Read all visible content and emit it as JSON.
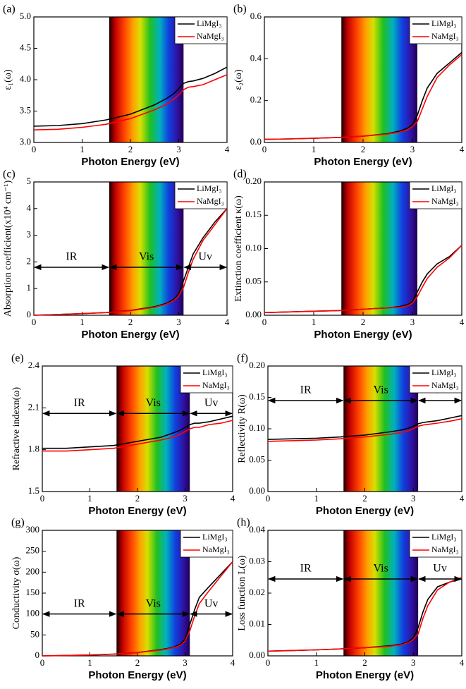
{
  "chart_data": [
    {
      "type": "line",
      "panel": "(a)",
      "xlabel": "Photon Energy (eV)",
      "ylabel": "ε₁(ω)",
      "x": [
        0,
        0.5,
        1,
        1.5,
        2,
        2.5,
        2.75,
        2.9,
        3,
        3.1,
        3.2,
        3.3,
        3.5,
        3.75,
        4
      ],
      "xlim": [
        0,
        4
      ],
      "xticks": [
        0,
        1,
        2,
        3,
        4
      ],
      "ylim": [
        3,
        5
      ],
      "yticks": [
        {
          "value": 3,
          "label": "3.0"
        },
        {
          "value": 3.5,
          "label": "3.5"
        },
        {
          "value": 4,
          "label": "4.0"
        },
        {
          "value": 4.5,
          "label": "4.5"
        },
        {
          "value": 5,
          "label": "5.0"
        }
      ],
      "legend": "upper right",
      "spectrum_band": [
        1.56,
        3.1
      ],
      "series": [
        {
          "name": "LiMgI₃",
          "color": "#000000",
          "values": [
            3.26,
            3.27,
            3.3,
            3.36,
            3.45,
            3.6,
            3.7,
            3.78,
            3.86,
            3.94,
            3.97,
            3.98,
            4.02,
            4.1,
            4.2
          ]
        },
        {
          "name": "NaMgI₃",
          "color": "#ff0000",
          "values": [
            3.2,
            3.21,
            3.24,
            3.29,
            3.38,
            3.52,
            3.61,
            3.69,
            3.76,
            3.84,
            3.88,
            3.89,
            3.92,
            4.0,
            4.08
          ]
        }
      ]
    },
    {
      "type": "line",
      "panel": "(b)",
      "xlabel": "Photon Energy (eV)",
      "ylabel": "ε₂(ω)",
      "x": [
        0,
        0.5,
        1,
        1.5,
        2,
        2.5,
        2.75,
        2.9,
        3,
        3.1,
        3.2,
        3.3,
        3.5,
        3.75,
        4
      ],
      "xlim": [
        0,
        4
      ],
      "xticks": [
        0,
        1,
        2,
        3,
        4
      ],
      "ylim": [
        0,
        0.6
      ],
      "yticks": [
        {
          "value": 0,
          "label": "0.0"
        },
        0.2,
        0.4,
        0.6
      ],
      "legend": "upper right",
      "spectrum_band": [
        1.56,
        3.1
      ],
      "series": [
        {
          "name": "LiMgI₃",
          "color": "#000000",
          "values": [
            0.015,
            0.017,
            0.02,
            0.024,
            0.03,
            0.042,
            0.055,
            0.068,
            0.085,
            0.13,
            0.2,
            0.26,
            0.33,
            0.38,
            0.43
          ]
        },
        {
          "name": "NaMgI₃",
          "color": "#ff0000",
          "values": [
            0.015,
            0.017,
            0.02,
            0.024,
            0.03,
            0.04,
            0.05,
            0.06,
            0.075,
            0.1,
            0.16,
            0.22,
            0.31,
            0.37,
            0.42
          ]
        }
      ]
    },
    {
      "type": "line",
      "panel": "(c)",
      "xlabel": "Photon Energy (eV)",
      "ylabel": "Absorption coefficient(x10⁴ cm⁻¹)",
      "x": [
        0,
        0.5,
        1,
        1.5,
        2,
        2.5,
        2.75,
        2.9,
        3,
        3.1,
        3.2,
        3.3,
        3.5,
        3.75,
        4
      ],
      "xlim": [
        0,
        4
      ],
      "xticks": [
        0,
        1,
        2,
        3,
        4
      ],
      "ylim": [
        0,
        5
      ],
      "yticks": [
        0,
        1,
        2,
        3,
        4,
        5
      ],
      "legend": "upper right",
      "spectrum_band": [
        1.56,
        3.1
      ],
      "annotation_y": 1.8,
      "regions": [
        {
          "label": "IR",
          "range": [
            0,
            1.56
          ]
        },
        {
          "label": "Vis",
          "range": [
            1.56,
            3.1
          ]
        },
        {
          "label": "Uv",
          "range": [
            3.1,
            4
          ]
        }
      ],
      "series": [
        {
          "name": "LiMgI₃",
          "color": "#000000",
          "values": [
            0,
            0.03,
            0.06,
            0.1,
            0.18,
            0.32,
            0.45,
            0.6,
            0.8,
            1.3,
            1.8,
            2.3,
            2.9,
            3.5,
            4.0
          ]
        },
        {
          "name": "NaMgI₃",
          "color": "#ff0000",
          "values": [
            0,
            0.03,
            0.06,
            0.1,
            0.17,
            0.3,
            0.42,
            0.55,
            0.72,
            1.05,
            1.6,
            2.1,
            2.8,
            3.4,
            4.0
          ]
        }
      ]
    },
    {
      "type": "line",
      "panel": "(d)",
      "xlabel": "Photon Energy (eV)",
      "ylabel": "Extinction coefficient κ(ω)",
      "x": [
        0,
        0.5,
        1,
        1.5,
        2,
        2.5,
        2.75,
        2.9,
        3,
        3.1,
        3.2,
        3.3,
        3.5,
        3.75,
        4
      ],
      "xlim": [
        0,
        4
      ],
      "xticks": [
        0,
        1,
        2,
        3,
        4
      ],
      "ylim": [
        0,
        0.2
      ],
      "yticks": [
        {
          "value": 0,
          "label": "0.00"
        },
        0.05,
        {
          "value": 0.1,
          "label": "0.10"
        },
        0.15,
        {
          "value": 0.2,
          "label": "0.20"
        }
      ],
      "legend": "upper right",
      "spectrum_band": [
        1.56,
        3.1
      ],
      "series": [
        {
          "name": "LiMgI₃",
          "color": "#000000",
          "values": [
            0.004,
            0.005,
            0.006,
            0.007,
            0.009,
            0.011,
            0.013,
            0.016,
            0.02,
            0.035,
            0.05,
            0.062,
            0.077,
            0.088,
            0.105
          ]
        },
        {
          "name": "NaMgI₃",
          "color": "#ff0000",
          "values": [
            0.004,
            0.005,
            0.006,
            0.007,
            0.009,
            0.011,
            0.012,
            0.014,
            0.018,
            0.028,
            0.042,
            0.055,
            0.072,
            0.086,
            0.105
          ]
        }
      ]
    },
    {
      "type": "line",
      "panel": "(e)",
      "xlabel": "Photon Energy (eV)",
      "ylabel": "Refractive indexn(ω)",
      "x": [
        0,
        0.5,
        1,
        1.5,
        2,
        2.5,
        2.75,
        2.9,
        3,
        3.1,
        3.2,
        3.3,
        3.5,
        3.75,
        4
      ],
      "xlim": [
        0,
        4
      ],
      "xticks": [
        0,
        1,
        2,
        3,
        4
      ],
      "ylim": [
        1.5,
        2.4
      ],
      "yticks": [
        1.5,
        1.8,
        2.1,
        2.4
      ],
      "legend": "upper right",
      "spectrum_band": [
        1.56,
        3.1
      ],
      "annotation_y": 2.06,
      "regions": [
        {
          "label": "IR",
          "range": [
            0,
            1.56
          ]
        },
        {
          "label": "Vis",
          "range": [
            1.56,
            3.1
          ]
        },
        {
          "label": "Uv",
          "range": [
            3.1,
            4
          ]
        }
      ],
      "series": [
        {
          "name": "LiMgI₃",
          "color": "#000000",
          "values": [
            1.81,
            1.81,
            1.82,
            1.83,
            1.86,
            1.89,
            1.92,
            1.94,
            1.96,
            1.98,
            1.99,
            1.99,
            2.0,
            2.02,
            2.04
          ]
        },
        {
          "name": "NaMgI₃",
          "color": "#ff0000",
          "values": [
            1.79,
            1.79,
            1.8,
            1.81,
            1.84,
            1.87,
            1.89,
            1.91,
            1.93,
            1.95,
            1.96,
            1.96,
            1.98,
            1.99,
            2.01
          ]
        }
      ]
    },
    {
      "type": "line",
      "panel": "(f)",
      "xlabel": "Photon Energy (eV)",
      "ylabel": "Reflectivity R(ω)",
      "x": [
        0,
        0.5,
        1,
        1.5,
        2,
        2.5,
        2.75,
        2.9,
        3,
        3.1,
        3.2,
        3.3,
        3.5,
        3.75,
        4
      ],
      "xlim": [
        0,
        4
      ],
      "xticks": [
        0,
        1,
        2,
        3,
        4
      ],
      "ylim": [
        0,
        0.2
      ],
      "yticks": [
        {
          "value": 0,
          "label": "0.00"
        },
        0.05,
        {
          "value": 0.1,
          "label": "0.10"
        },
        0.15,
        {
          "value": 0.2,
          "label": "0.20"
        }
      ],
      "legend": "upper right",
      "spectrum_band": [
        1.56,
        3.1
      ],
      "annotation_y": 0.145,
      "regions": [
        {
          "label": "IR",
          "range": [
            0,
            1.56
          ]
        },
        {
          "label": "Vis",
          "range": [
            1.56,
            3.1
          ]
        },
        {
          "label": "Uv",
          "range": [
            3.1,
            4
          ]
        }
      ],
      "series": [
        {
          "name": "LiMgI₃",
          "color": "#000000",
          "values": [
            0.083,
            0.084,
            0.085,
            0.087,
            0.09,
            0.095,
            0.098,
            0.101,
            0.104,
            0.108,
            0.11,
            0.111,
            0.113,
            0.117,
            0.121
          ]
        },
        {
          "name": "NaMgI₃",
          "color": "#ff0000",
          "values": [
            0.08,
            0.081,
            0.082,
            0.084,
            0.087,
            0.091,
            0.094,
            0.097,
            0.1,
            0.104,
            0.106,
            0.107,
            0.109,
            0.112,
            0.116
          ]
        }
      ]
    },
    {
      "type": "line",
      "panel": "(g)",
      "xlabel": "Photon Energy (eV)",
      "ylabel": "Conductivity σ(ω)",
      "x": [
        0,
        0.5,
        1,
        1.5,
        2,
        2.5,
        2.75,
        2.9,
        3,
        3.1,
        3.2,
        3.3,
        3.5,
        3.75,
        4
      ],
      "xlim": [
        0,
        4
      ],
      "xticks": [
        0,
        1,
        2,
        3,
        4
      ],
      "ylim": [
        0,
        300
      ],
      "yticks": [
        0,
        50,
        100,
        150,
        200,
        250,
        300
      ],
      "legend": "upper right",
      "spectrum_band": [
        1.56,
        3.1
      ],
      "annotation_y": 100,
      "regions": [
        {
          "label": "IR",
          "range": [
            0,
            1.56
          ]
        },
        {
          "label": "Vis",
          "range": [
            1.56,
            3.1
          ]
        },
        {
          "label": "Uv",
          "range": [
            3.1,
            4
          ]
        }
      ],
      "series": [
        {
          "name": "LiMgI₃",
          "color": "#000000",
          "values": [
            0,
            1,
            2,
            4,
            8,
            15,
            20,
            28,
            40,
            75,
            110,
            140,
            165,
            195,
            225
          ]
        },
        {
          "name": "NaMgI₃",
          "color": "#ff0000",
          "values": [
            0,
            1,
            2,
            4,
            8,
            14,
            19,
            25,
            35,
            60,
            95,
            125,
            155,
            190,
            225
          ]
        }
      ]
    },
    {
      "type": "line",
      "panel": "(h)",
      "xlabel": "Photon Energy (eV)",
      "ylabel": "Loss function L(ω)",
      "x": [
        0,
        0.5,
        1,
        1.5,
        2,
        2.5,
        2.75,
        2.9,
        3,
        3.1,
        3.2,
        3.3,
        3.5,
        3.75,
        4
      ],
      "xlim": [
        0,
        4
      ],
      "xticks": [
        0,
        1,
        2,
        3,
        4
      ],
      "ylim": [
        0,
        0.04
      ],
      "yticks": [
        {
          "value": 0,
          "label": "0.00"
        },
        0.01,
        0.02,
        0.03,
        0.04
      ],
      "legend": "upper right",
      "spectrum_band": [
        1.56,
        3.1
      ],
      "annotation_y": 0.0245,
      "regions": [
        {
          "label": "IR",
          "range": [
            0,
            1.56
          ]
        },
        {
          "label": "Vis",
          "range": [
            1.56,
            3.1
          ]
        },
        {
          "label": "Uv",
          "range": [
            3.1,
            4
          ]
        }
      ],
      "series": [
        {
          "name": "LiMgI₃",
          "color": "#000000",
          "values": [
            0.0015,
            0.0017,
            0.0019,
            0.0022,
            0.0026,
            0.0032,
            0.0037,
            0.0045,
            0.0058,
            0.009,
            0.014,
            0.018,
            0.022,
            0.0235,
            0.0245
          ]
        },
        {
          "name": "NaMgI₃",
          "color": "#ff0000",
          "values": [
            0.0015,
            0.0017,
            0.0019,
            0.0022,
            0.0026,
            0.003,
            0.0035,
            0.0042,
            0.0052,
            0.007,
            0.012,
            0.016,
            0.021,
            0.0235,
            0.025
          ]
        }
      ]
    }
  ]
}
